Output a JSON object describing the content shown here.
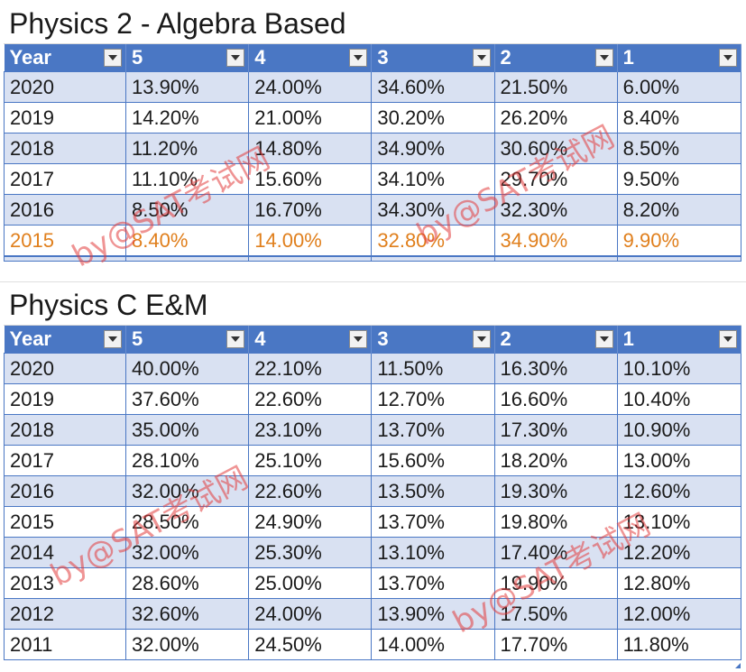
{
  "tables": [
    {
      "title": "Physics 2 - Algebra Based",
      "headers": [
        "Year",
        "5",
        "4",
        "3",
        "2",
        "1"
      ],
      "rows": [
        [
          "2020",
          "13.90%",
          "24.00%",
          "34.60%",
          "21.50%",
          "6.00%"
        ],
        [
          "2019",
          "14.20%",
          "21.00%",
          "30.20%",
          "26.20%",
          "8.40%"
        ],
        [
          "2018",
          "11.20%",
          "14.80%",
          "34.90%",
          "30.60%",
          "8.50%"
        ],
        [
          "2017",
          "11.10%",
          "15.60%",
          "34.10%",
          "29.70%",
          "9.50%"
        ],
        [
          "2016",
          "8.50%",
          "16.70%",
          "34.30%",
          "32.30%",
          "8.20%"
        ],
        [
          "2015",
          "8.40%",
          "14.00%",
          "32.80%",
          "34.90%",
          "9.90%"
        ]
      ],
      "highlight_row_index": 5
    },
    {
      "title": "Physics C E&M",
      "headers": [
        "Year",
        "5",
        "4",
        "3",
        "2",
        "1"
      ],
      "rows": [
        [
          "2020",
          "40.00%",
          "22.10%",
          "11.50%",
          "16.30%",
          "10.10%"
        ],
        [
          "2019",
          "37.60%",
          "22.60%",
          "12.70%",
          "16.60%",
          "10.40%"
        ],
        [
          "2018",
          "35.00%",
          "23.10%",
          "13.70%",
          "17.30%",
          "10.90%"
        ],
        [
          "2017",
          "28.10%",
          "25.10%",
          "15.60%",
          "18.20%",
          "13.00%"
        ],
        [
          "2016",
          "32.00%",
          "22.60%",
          "13.50%",
          "19.30%",
          "12.60%"
        ],
        [
          "2015",
          "28.50%",
          "24.90%",
          "13.70%",
          "19.80%",
          "13.10%"
        ],
        [
          "2014",
          "32.00%",
          "25.30%",
          "13.10%",
          "17.40%",
          "12.20%"
        ],
        [
          "2013",
          "28.60%",
          "25.00%",
          "13.70%",
          "19.90%",
          "12.80%"
        ],
        [
          "2012",
          "32.60%",
          "24.00%",
          "13.90%",
          "17.50%",
          "12.00%"
        ],
        [
          "2011",
          "32.00%",
          "24.50%",
          "14.00%",
          "17.70%",
          "11.80%"
        ]
      ],
      "highlight_row_index": -1
    }
  ],
  "watermark": "by@SAT考试网",
  "colors": {
    "header_bg": "#4a77c4",
    "band_bg": "#d9e1f2",
    "highlight_text": "#e07f1c",
    "watermark": "#e23c3c"
  },
  "icons": {
    "filter": "filter-dropdown-icon"
  }
}
